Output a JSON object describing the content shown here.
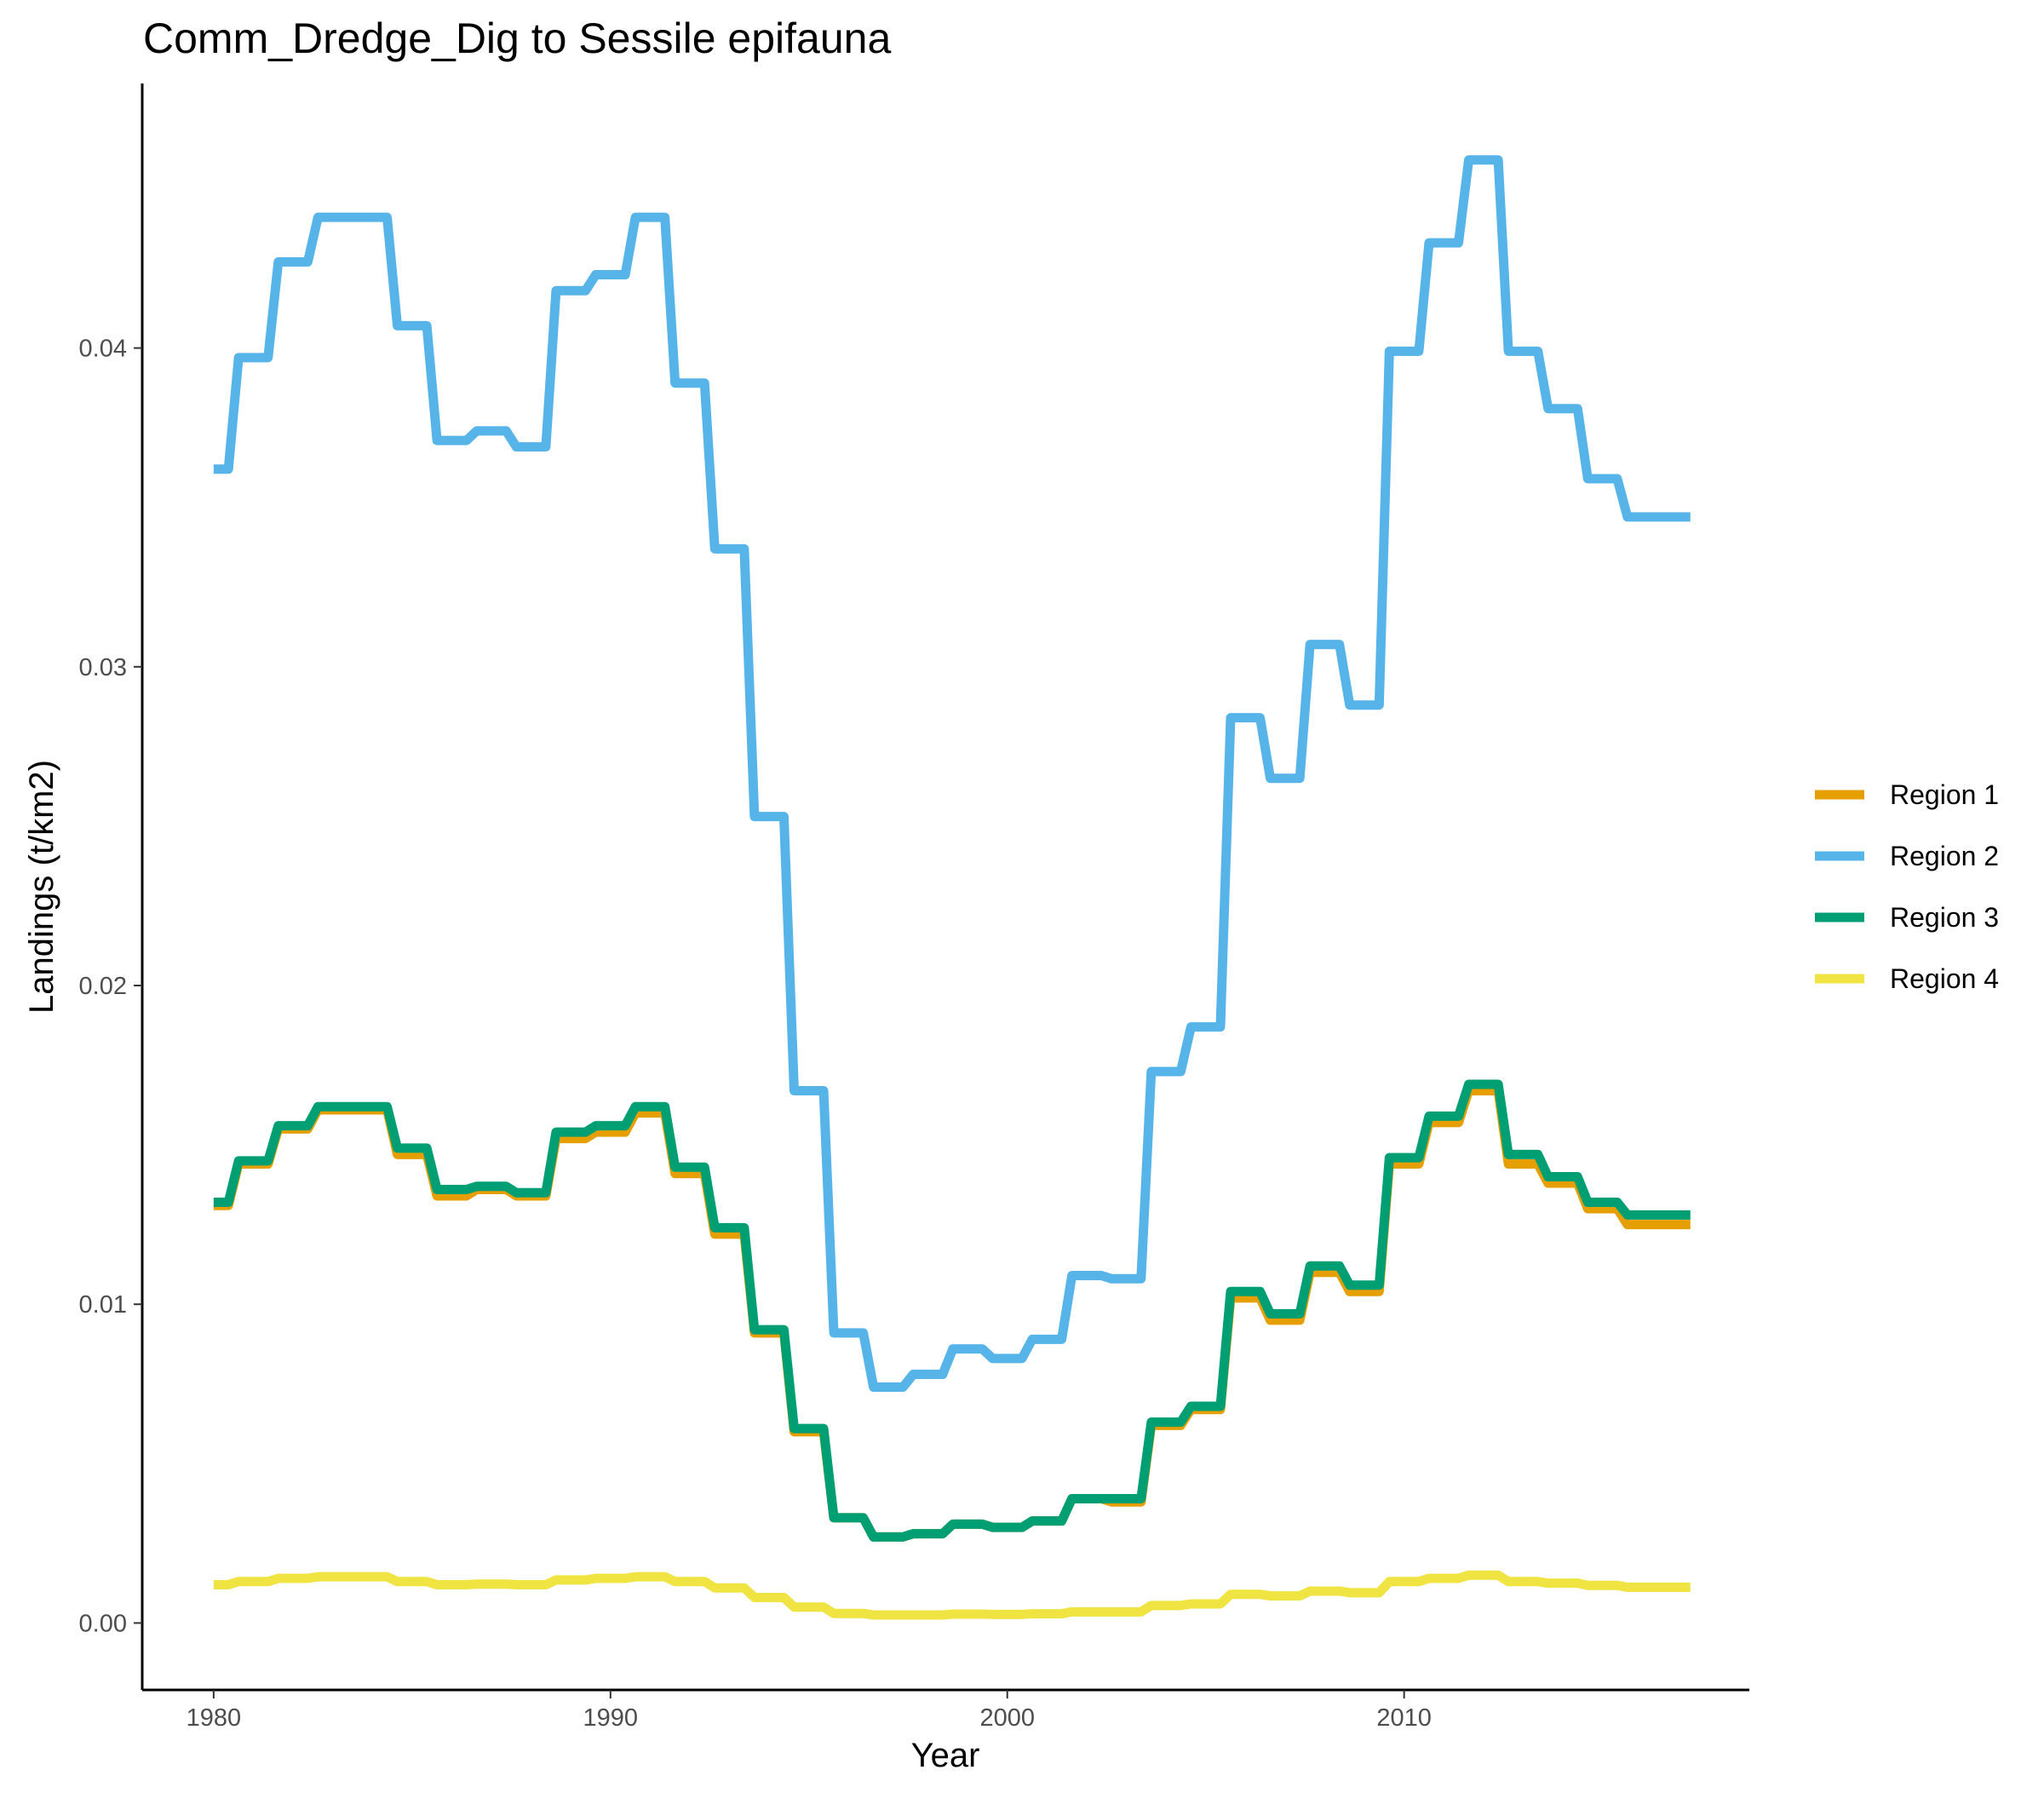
{
  "chart_data": {
    "type": "line",
    "title": "Comm_Dredge_Dig to Sessile epifauna",
    "xlabel": "Year",
    "ylabel": "Landings (t/km2)",
    "xlim": [
      1978.2,
      2018.7
    ],
    "ylim": [
      -0.0021,
      0.0483
    ],
    "x_ticks": [
      1980,
      1990,
      2000,
      2010
    ],
    "y_ticks": [
      0.0,
      0.01,
      0.02,
      0.03,
      0.04
    ],
    "x_tick_labels": [
      "1980",
      "1990",
      "2000",
      "2010"
    ],
    "y_tick_labels": [
      "0.00",
      "0.01",
      "0.02",
      "0.03",
      "0.04"
    ],
    "grid": false,
    "legend_position": "right",
    "step": true,
    "x": [
      1980,
      1981,
      1982,
      1983,
      1984,
      1985,
      1986,
      1987,
      1988,
      1989,
      1990,
      1991,
      1992,
      1993,
      1994,
      1995,
      1996,
      1997,
      1998,
      1999,
      2000,
      2001,
      2002,
      2003,
      2004,
      2005,
      2006,
      2007,
      2008,
      2009,
      2010,
      2011,
      2012,
      2013,
      2014,
      2015,
      2016,
      2017
    ],
    "series": [
      {
        "name": "Region 1",
        "color": "#E69F00",
        "values": [
          0.0131,
          0.0144,
          0.0155,
          0.0161,
          0.0161,
          0.0147,
          0.0134,
          0.0136,
          0.0134,
          0.0152,
          0.0154,
          0.016,
          0.0141,
          0.0122,
          0.0091,
          0.006,
          0.0033,
          0.0027,
          0.0028,
          0.0031,
          0.003,
          0.0032,
          0.0039,
          0.0038,
          0.0062,
          0.0067,
          0.0102,
          0.0095,
          0.011,
          0.0104,
          0.0144,
          0.0157,
          0.0167,
          0.0144,
          0.0138,
          0.013,
          0.0125,
          0.0125
        ]
      },
      {
        "name": "Region 2",
        "color": "#56B4E9",
        "values": [
          0.0362,
          0.0397,
          0.0427,
          0.0441,
          0.0441,
          0.0407,
          0.0371,
          0.0374,
          0.0369,
          0.0418,
          0.0423,
          0.0441,
          0.0389,
          0.0337,
          0.0253,
          0.0167,
          0.0091,
          0.0074,
          0.0078,
          0.0086,
          0.0083,
          0.0089,
          0.0109,
          0.0108,
          0.0173,
          0.0187,
          0.0284,
          0.0265,
          0.0307,
          0.0288,
          0.0399,
          0.0433,
          0.0459,
          0.0399,
          0.0381,
          0.0359,
          0.0347,
          0.0347
        ]
      },
      {
        "name": "Region 3",
        "color": "#009E73",
        "values": [
          0.0132,
          0.0145,
          0.0156,
          0.0162,
          0.0162,
          0.0149,
          0.0136,
          0.0137,
          0.0135,
          0.0154,
          0.0156,
          0.0162,
          0.0143,
          0.0124,
          0.0092,
          0.0061,
          0.0033,
          0.0027,
          0.0028,
          0.0031,
          0.003,
          0.0032,
          0.0039,
          0.0039,
          0.0063,
          0.0068,
          0.0104,
          0.0097,
          0.0112,
          0.0106,
          0.0146,
          0.0159,
          0.0169,
          0.0147,
          0.014,
          0.0132,
          0.0128,
          0.0128
        ]
      },
      {
        "name": "Region 4",
        "color": "#F0E442",
        "values": [
          0.0012,
          0.0013,
          0.0014,
          0.00145,
          0.00145,
          0.0013,
          0.0012,
          0.00122,
          0.0012,
          0.00135,
          0.0014,
          0.00145,
          0.0013,
          0.0011,
          0.0008,
          0.0005,
          0.0003,
          0.00025,
          0.00025,
          0.00028,
          0.00027,
          0.00029,
          0.00035,
          0.00035,
          0.00055,
          0.0006,
          0.0009,
          0.00085,
          0.001,
          0.00095,
          0.0013,
          0.0014,
          0.0015,
          0.0013,
          0.00125,
          0.00118,
          0.00112,
          0.00112
        ]
      }
    ]
  }
}
